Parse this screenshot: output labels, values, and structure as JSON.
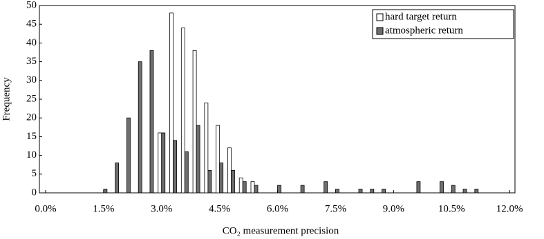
{
  "chart_data": {
    "type": "bar",
    "x_label": "CO₂ measurement precision",
    "y_label": "Frequency",
    "x": [
      1.5,
      1.8,
      2.1,
      2.4,
      2.7,
      3.0,
      3.3,
      3.6,
      3.9,
      4.2,
      4.5,
      4.8,
      5.1,
      5.4,
      6.0,
      6.6,
      7.2,
      7.5,
      8.1,
      8.4,
      8.7,
      9.6,
      10.2,
      10.5,
      10.8,
      11.1
    ],
    "series": [
      {
        "name": "hard target return",
        "color": "#ffffff",
        "values": [
          0,
          0,
          0,
          0,
          0,
          16,
          48,
          44,
          38,
          24,
          18,
          12,
          4,
          3,
          0,
          0,
          0,
          0,
          0,
          0,
          0,
          0,
          0,
          0,
          0,
          0
        ]
      },
      {
        "name": "atmospheric return",
        "color": "#6e6e6e",
        "values": [
          1,
          8,
          20,
          35,
          38,
          16,
          14,
          11,
          18,
          6,
          8,
          6,
          3,
          2,
          2,
          2,
          3,
          1,
          1,
          1,
          1,
          3,
          3,
          2,
          1,
          1
        ]
      }
    ],
    "xlim": [
      -0.16,
      12.14
    ],
    "xticks": [
      {
        "value": 0,
        "label": "0.0%"
      },
      {
        "value": 1.5,
        "label": "1.5%"
      },
      {
        "value": 3,
        "label": "3.0%"
      },
      {
        "value": 4.5,
        "label": "4.5%"
      },
      {
        "value": 6,
        "label": "6.0%"
      },
      {
        "value": 7.5,
        "label": "7.5%"
      },
      {
        "value": 9,
        "label": "9.0%"
      },
      {
        "value": 10.5,
        "label": "10.5%"
      },
      {
        "value": 12,
        "label": "12.0%"
      }
    ],
    "ylim": [
      0,
      50
    ],
    "yticks": [
      0,
      5,
      10,
      15,
      20,
      25,
      30,
      35,
      40,
      45,
      50
    ],
    "legend": "upper right"
  }
}
